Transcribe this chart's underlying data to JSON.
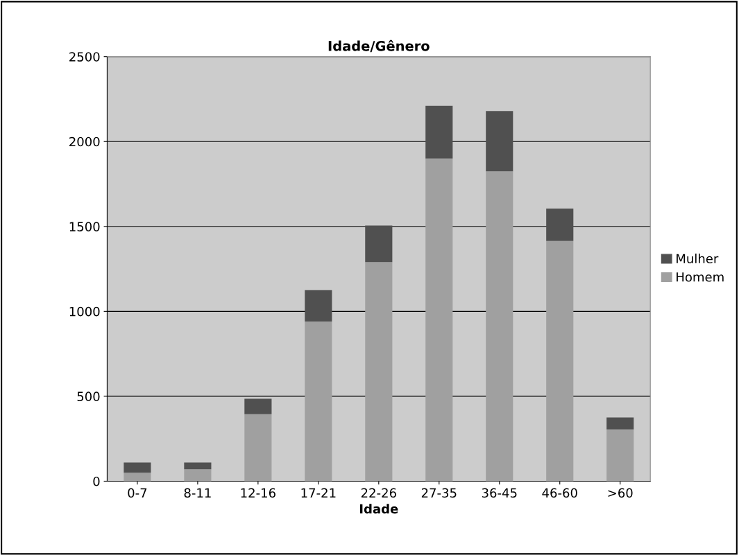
{
  "chart_data": {
    "type": "bar",
    "title": "Idade/Gênero",
    "xlabel": "Idade",
    "stacked": true,
    "categories": [
      "0-7",
      "8-11",
      "12-16",
      "17-21",
      "22-26",
      "27-35",
      "36-45",
      "46-60",
      ">60"
    ],
    "series": [
      {
        "name": "Homem",
        "color": "#a0a0a0",
        "values": [
          50,
          70,
          395,
          940,
          1290,
          1900,
          1825,
          1415,
          305
        ]
      },
      {
        "name": "Mulher",
        "color": "#505050",
        "values": [
          60,
          40,
          90,
          185,
          215,
          310,
          355,
          190,
          70
        ]
      }
    ],
    "ylim": [
      0,
      2500
    ],
    "yticks": [
      0,
      500,
      1000,
      1500,
      2000,
      2500
    ],
    "grid": "y",
    "legend": "right"
  }
}
